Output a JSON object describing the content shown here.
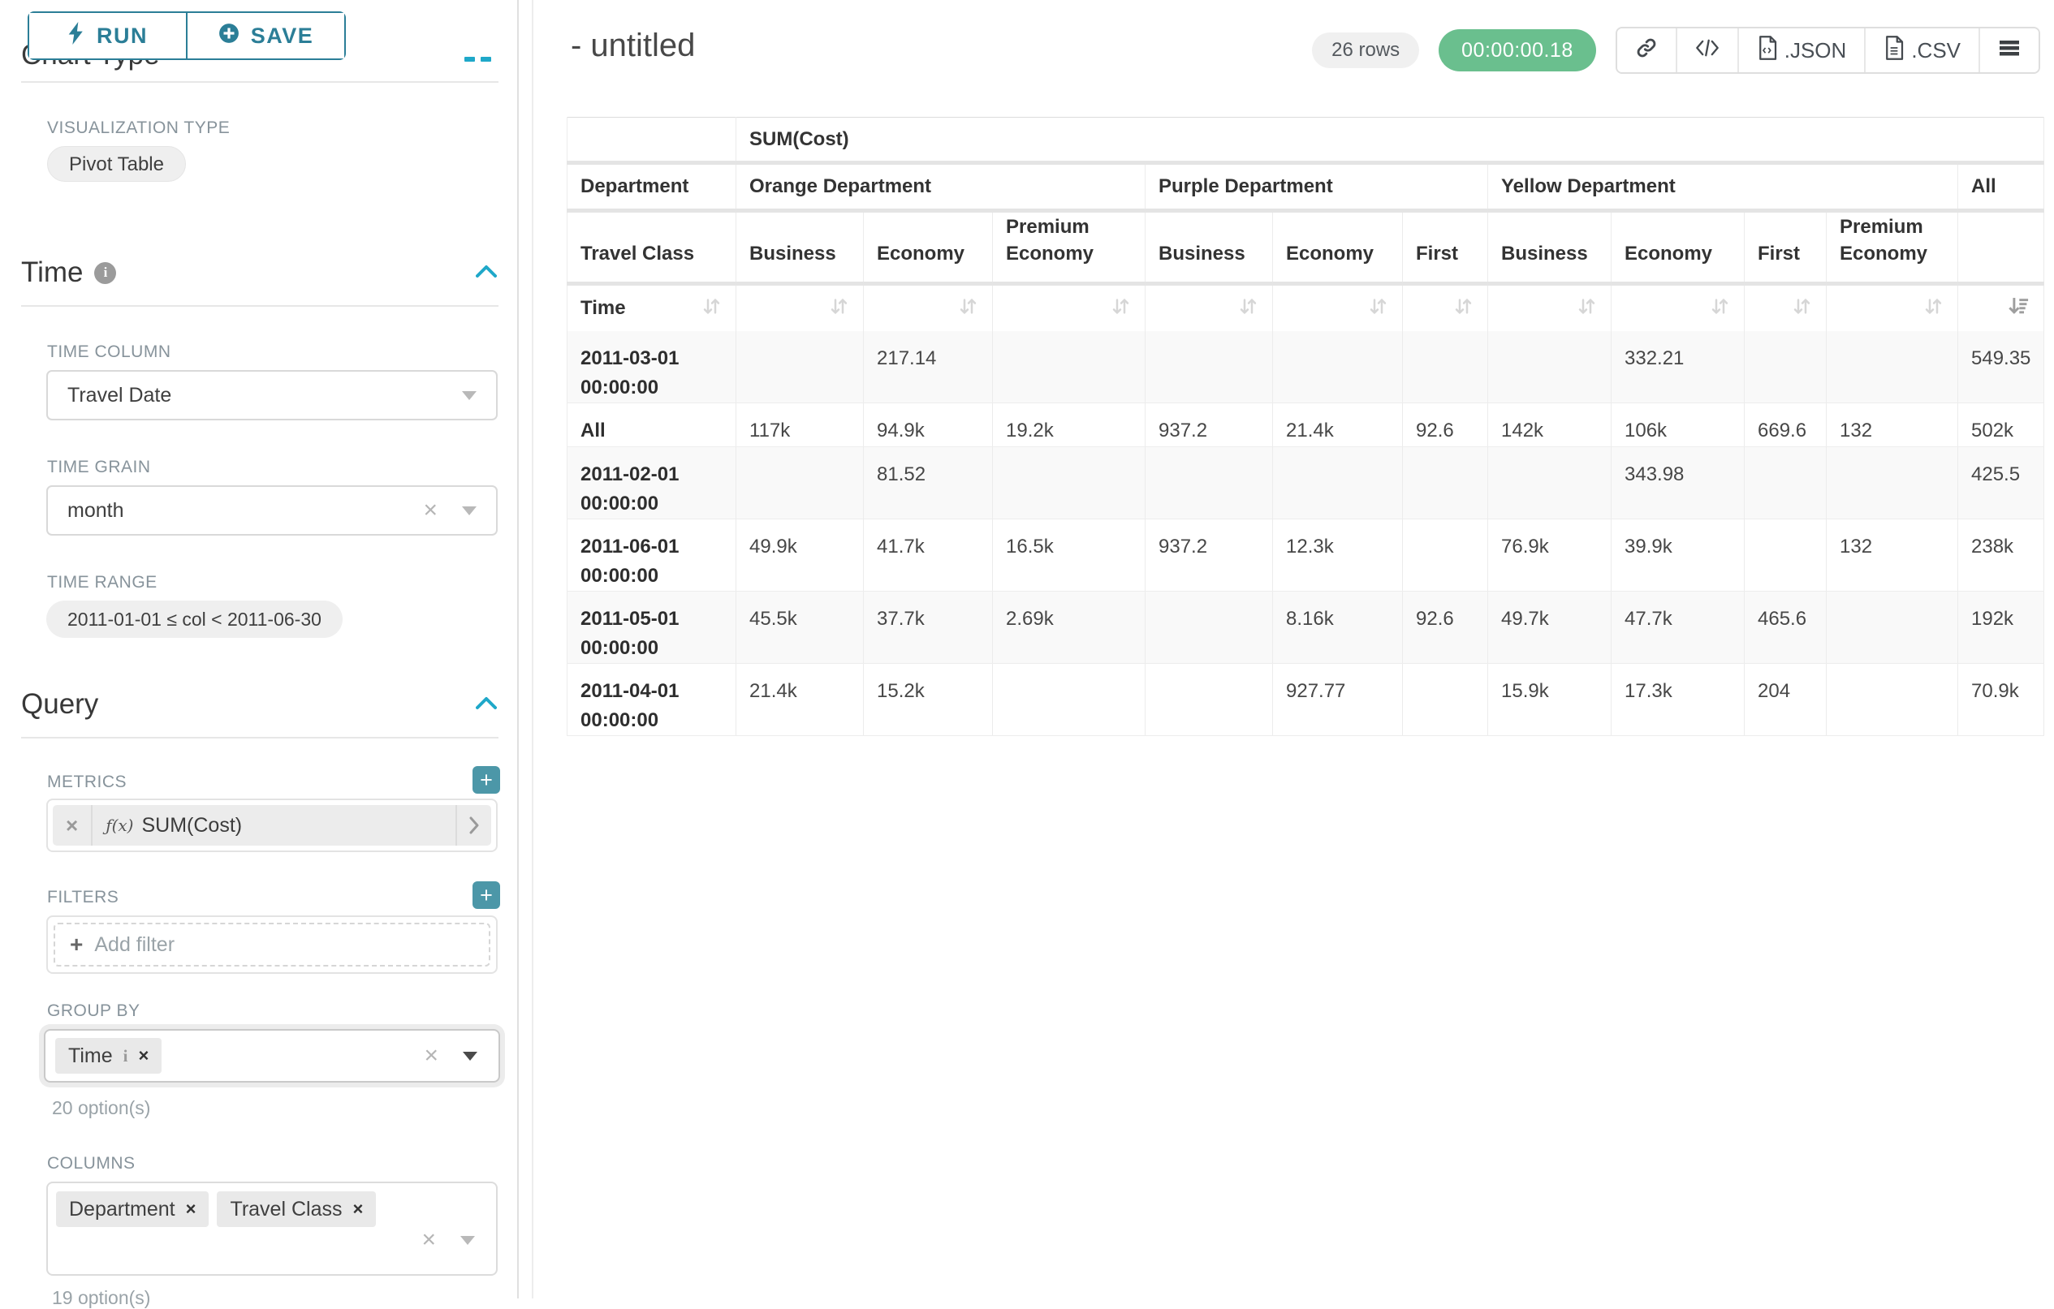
{
  "sidebar": {
    "run_label": "RUN",
    "save_label": "SAVE",
    "chart_type_heading": "Chart Type",
    "viz_type_label": "VISUALIZATION TYPE",
    "viz_type_value": "Pivot Table",
    "time_section_heading": "Time",
    "time_column": {
      "label": "TIME COLUMN",
      "value": "Travel Date"
    },
    "time_grain": {
      "label": "TIME GRAIN",
      "value": "month"
    },
    "time_range": {
      "label": "TIME RANGE",
      "value": "2011-01-01 ≤ col < 2011-06-30"
    },
    "query_section_heading": "Query",
    "metrics": {
      "label": "METRICS",
      "fx": "ƒ(x)",
      "value": "SUM(Cost)"
    },
    "filters": {
      "label": "FILTERS",
      "placeholder": "Add filter"
    },
    "group_by": {
      "label": "GROUP BY",
      "tag": "Time",
      "tag_info": "i",
      "options": "20 option(s)"
    },
    "columns": {
      "label": "COLUMNS",
      "tags": [
        "Department",
        "Travel Class"
      ],
      "options": "19 option(s)"
    }
  },
  "header": {
    "title": "- untitled",
    "rows_badge": "26 rows",
    "timer": "00:00:00.18",
    "json_label": ".JSON",
    "csv_label": ".CSV"
  },
  "chart_data": {
    "type": "table",
    "metric_header": "SUM(Cost)",
    "corner_top": "Department",
    "corner_bottom": "Travel Class",
    "row_dimension": "Time",
    "column_groups": [
      {
        "label": "Orange Department",
        "classes": [
          "Business",
          "Economy",
          "Premium Economy"
        ]
      },
      {
        "label": "Purple Department",
        "classes": [
          "Business",
          "Economy",
          "First"
        ]
      },
      {
        "label": "Yellow Department",
        "classes": [
          "Business",
          "Economy",
          "First",
          "Premium Economy"
        ]
      },
      {
        "label": "All",
        "classes": [
          ""
        ]
      }
    ],
    "rows": [
      {
        "label": "2011-03-01 00:00:00",
        "values": [
          "",
          "217.14",
          "",
          "",
          "",
          "",
          "",
          "332.21",
          "",
          "",
          "549.35"
        ]
      },
      {
        "label": "All",
        "values": [
          "117k",
          "94.9k",
          "19.2k",
          "937.2",
          "21.4k",
          "92.6",
          "142k",
          "106k",
          "669.6",
          "132",
          "502k"
        ]
      },
      {
        "label": "2011-02-01 00:00:00",
        "values": [
          "",
          "81.52",
          "",
          "",
          "",
          "",
          "",
          "343.98",
          "",
          "",
          "425.5"
        ]
      },
      {
        "label": "2011-06-01 00:00:00",
        "values": [
          "49.9k",
          "41.7k",
          "16.5k",
          "937.2",
          "12.3k",
          "",
          "76.9k",
          "39.9k",
          "",
          "132",
          "238k"
        ]
      },
      {
        "label": "2011-05-01 00:00:00",
        "values": [
          "45.5k",
          "37.7k",
          "2.69k",
          "",
          "8.16k",
          "92.6",
          "49.7k",
          "47.7k",
          "465.6",
          "",
          "192k"
        ]
      },
      {
        "label": "2011-04-01 00:00:00",
        "values": [
          "21.4k",
          "15.2k",
          "",
          "",
          "927.77",
          "",
          "15.9k",
          "17.3k",
          "204",
          "",
          "70.9k"
        ]
      }
    ],
    "sort": {
      "active_column": "All",
      "direction": "desc"
    }
  }
}
